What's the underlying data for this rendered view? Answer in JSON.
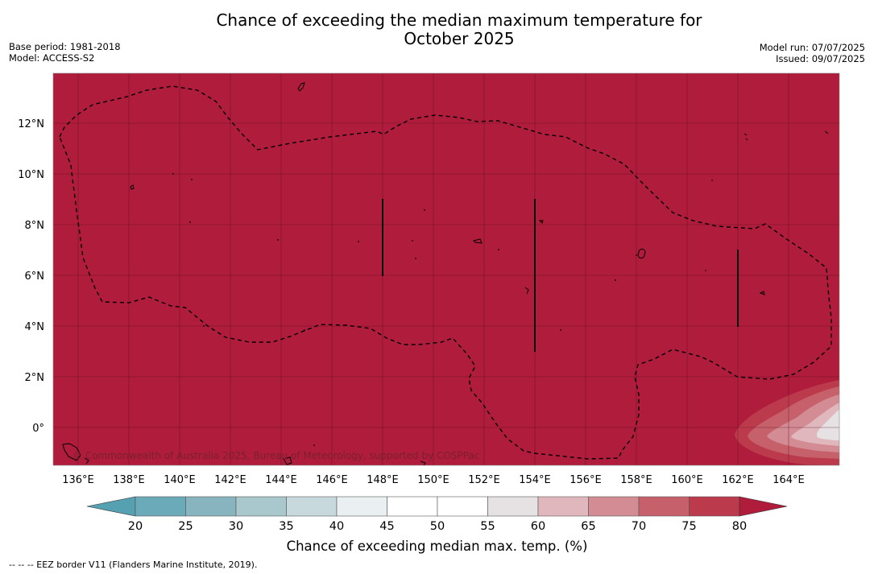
{
  "title_line1": "Chance of exceeding the median maximum temperature for",
  "title_line2": "October 2025",
  "base_period": "Base period: 1981-2018",
  "model": "Model: ACCESS-S2",
  "model_run": "Model run: 07/07/2025",
  "issued": "Issued: 09/07/2025",
  "copyright": "© Commonwealth of Australia 2025, Bureau of Meteorology, supported by COSPPac",
  "lon_labels": [
    "136°E",
    "138°E",
    "140°E",
    "142°E",
    "144°E",
    "146°E",
    "148°E",
    "150°E",
    "152°E",
    "154°E",
    "156°E",
    "158°E",
    "160°E",
    "162°E",
    "164°E"
  ],
  "lat_labels": [
    "12°N",
    "10°N",
    "8°N",
    "6°N",
    "4°N",
    "2°N",
    "0°"
  ],
  "colorbar": {
    "title": "Chance of exceeding median max. temp. (%)",
    "ticks": [
      "20",
      "25",
      "30",
      "35",
      "40",
      "45",
      "50",
      "55",
      "60",
      "65",
      "70",
      "75",
      "80"
    ],
    "colors": [
      "#6aaab9",
      "#88b4c0",
      "#a9c8cd",
      "#c7d9dd",
      "#eaf0f2",
      "#ffffff",
      "#ffffff",
      "#e6e2e3",
      "#dfb7bd",
      "#d38c93",
      "#c6616b",
      "#bb3b4d"
    ],
    "low_extend_color": "#55a1b1",
    "high_extend_color": "#b01c3b"
  },
  "field_color": "#b01c3b",
  "footnote": "--  --  -- EEZ border V11 (Flanders Marine Institute, 2019)."
}
